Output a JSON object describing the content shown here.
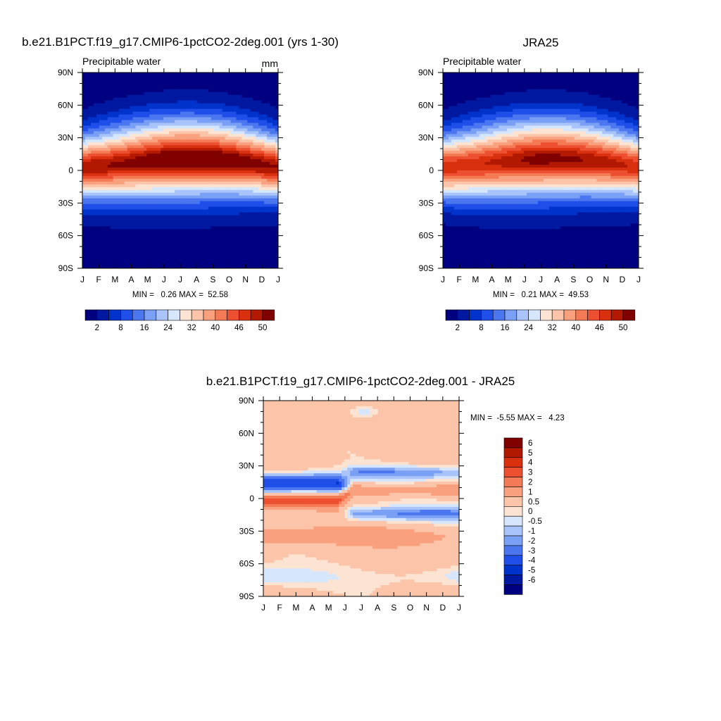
{
  "panels": [
    {
      "title": "b.e21.B1PCT.f19_g17.CMIP6-1pctCO2-2deg.001 (yrs 1-30)",
      "left_label": "Precipitable water",
      "right_label": "mm",
      "stats": "MIN =   0.26 MAX =  52.58"
    },
    {
      "title": "JRA25",
      "left_label": "Precipitable water",
      "right_label": "",
      "stats": "MIN =   0.21 MAX =  49.53"
    },
    {
      "title": "b.e21.B1PCT.f19_g17.CMIP6-1pctCO2-2deg.001 - JRA25",
      "left_label": "",
      "right_label": "",
      "stats": "MIN =  -5.55 MAX =   4.23"
    }
  ],
  "chart_data": [
    {
      "type": "heatmap",
      "title": "b.e21.B1PCT.f19_g17.CMIP6-1pctCO2-2deg.001 (yrs 1-30)",
      "x_ticks": [
        "J",
        "F",
        "M",
        "A",
        "M",
        "J",
        "J",
        "A",
        "S",
        "O",
        "N",
        "D",
        "J"
      ],
      "y_ticks": [
        "90N",
        "60N",
        "30N",
        "0",
        "30S",
        "60S",
        "90S"
      ],
      "ylim": [
        -90,
        90
      ],
      "variable": "Precipitable water",
      "units": "mm",
      "min": 0.26,
      "max": 52.58,
      "colorbar_labels": [
        "2",
        "8",
        "16",
        "24",
        "32",
        "40",
        "46",
        "50"
      ],
      "colorbar_colors": [
        "#000080",
        "#0019a0",
        "#0033cc",
        "#1f4ee8",
        "#4b76f0",
        "#7aa0f6",
        "#a9c4fa",
        "#d6e6fd",
        "#fde3d2",
        "#fcc4a8",
        "#f9a07e",
        "#f47a55",
        "#ed5030",
        "#d9300f",
        "#b31900",
        "#800000"
      ]
    },
    {
      "type": "heatmap",
      "title": "JRA25",
      "x_ticks": [
        "J",
        "F",
        "M",
        "A",
        "M",
        "J",
        "J",
        "A",
        "S",
        "O",
        "N",
        "D",
        "J"
      ],
      "y_ticks": [
        "90N",
        "60N",
        "30N",
        "0",
        "30S",
        "60S",
        "90S"
      ],
      "ylim": [
        -90,
        90
      ],
      "variable": "Precipitable water",
      "min": 0.21,
      "max": 49.53,
      "colorbar_labels": [
        "2",
        "8",
        "16",
        "24",
        "32",
        "40",
        "46",
        "50"
      ],
      "colorbar_colors": [
        "#000080",
        "#0019a0",
        "#0033cc",
        "#1f4ee8",
        "#4b76f0",
        "#7aa0f6",
        "#a9c4fa",
        "#d6e6fd",
        "#fde3d2",
        "#fcc4a8",
        "#f9a07e",
        "#f47a55",
        "#ed5030",
        "#d9300f",
        "#b31900",
        "#800000"
      ]
    },
    {
      "type": "heatmap",
      "title": "b.e21.B1PCT.f19_g17.CMIP6-1pctCO2-2deg.001 - JRA25",
      "x_ticks": [
        "J",
        "F",
        "M",
        "A",
        "M",
        "J",
        "J",
        "A",
        "S",
        "O",
        "N",
        "D",
        "J"
      ],
      "y_ticks": [
        "90N",
        "60N",
        "30N",
        "0",
        "30S",
        "60S",
        "90S"
      ],
      "ylim": [
        -90,
        90
      ],
      "min": -5.55,
      "max": 4.23,
      "colorbar_labels": [
        "6",
        "5",
        "4",
        "3",
        "2",
        "1",
        "0.5",
        "0",
        "-0.5",
        "-1",
        "-2",
        "-3",
        "-4",
        "-5",
        "-6"
      ],
      "colorbar_colors": [
        "#800000",
        "#b31900",
        "#d9300f",
        "#ed5030",
        "#f47a55",
        "#f9a07e",
        "#fcc4a8",
        "#fde3d2",
        "#d6e6fd",
        "#a9c4fa",
        "#7aa0f6",
        "#4b76f0",
        "#1f4ee8",
        "#0033cc",
        "#0019a0",
        "#000080"
      ]
    }
  ]
}
